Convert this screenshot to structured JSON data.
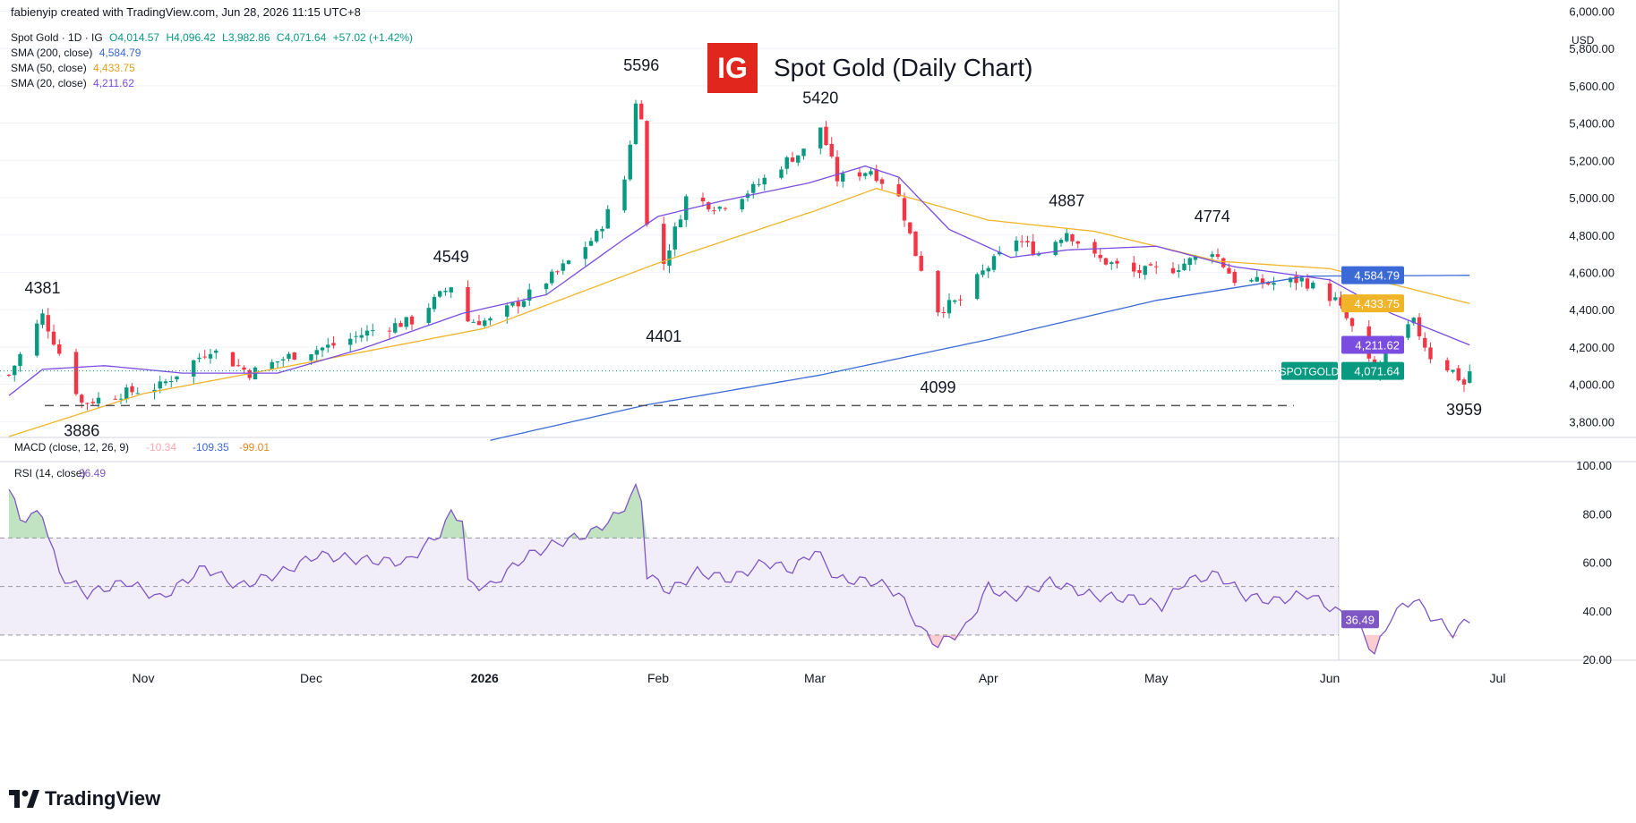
{
  "header": {
    "created_by": "fabienyip created with TradingView.com, Jun 28, 2026 11:15 UTC+8",
    "symbol_line": "Spot Gold · 1D · IG",
    "ohlc": {
      "o": "O4,014.57",
      "h": "H4,096.42",
      "l": "L3,982.86",
      "c": "C4,071.64",
      "chg": "+57.02 (+1.42%)"
    },
    "sma200": {
      "label": "SMA (200, close)",
      "value": "4,584.79",
      "color": "#3b6ad6"
    },
    "sma50": {
      "label": "SMA (50, close)",
      "value": "4,433.75",
      "color": "#f0b429"
    },
    "sma20": {
      "label": "SMA (20, close)",
      "value": "4,211.62",
      "color": "#7b4ce0"
    }
  },
  "title": "Spot Gold (Daily Chart)",
  "logo_text": "IG",
  "currency": "USD",
  "brand": "TradingView",
  "chart_data": [
    {
      "type": "candlestick",
      "title": "Spot Gold (Daily Chart)",
      "ylim": [
        3720,
        6060
      ],
      "y_ticks": [
        "3,800.00",
        "4,000.00",
        "4,200.00",
        "4,400.00",
        "4,600.00",
        "4,800.00",
        "5,000.00",
        "5,200.00",
        "5,400.00",
        "5,600.00",
        "5,800.00",
        "6,000.00"
      ],
      "x_ticks": [
        "Nov",
        "Dec",
        "2026",
        "Feb",
        "Mar",
        "Apr",
        "May",
        "Jun",
        "Jul"
      ],
      "support_level": 3886,
      "last_price": 4071.64,
      "price_tag": "SPOTGOLD",
      "last_price_label": "4,071.64",
      "annotations": [
        {
          "label": "4381",
          "date": "2025-10-14"
        },
        {
          "label": "3886",
          "date": "2025-10-21"
        },
        {
          "label": "4549",
          "date": "2025-12-26"
        },
        {
          "label": "5596",
          "date": "2026-01-29"
        },
        {
          "label": "4401",
          "date": "2026-02-02"
        },
        {
          "label": "5420",
          "date": "2026-03-02"
        },
        {
          "label": "4099",
          "date": "2026-03-23"
        },
        {
          "label": "4887",
          "date": "2026-04-15"
        },
        {
          "label": "4774",
          "date": "2026-05-11"
        },
        {
          "label": "3959",
          "date": "2026-06-25"
        }
      ],
      "series": [
        {
          "name": "Spot Gold",
          "anchors": [
            [
              "2025-10-08",
              4050
            ],
            [
              "2025-10-14",
              4370
            ],
            [
              "2025-10-21",
              3900
            ],
            [
              "2025-10-28",
              3950
            ],
            [
              "2025-11-04",
              3990
            ],
            [
              "2025-11-13",
              4190
            ],
            [
              "2025-11-20",
              4060
            ],
            [
              "2025-11-27",
              4150
            ],
            [
              "2025-12-05",
              4210
            ],
            [
              "2025-12-12",
              4290
            ],
            [
              "2025-12-19",
              4340
            ],
            [
              "2025-12-26",
              4530
            ],
            [
              "2025-12-29",
              4340
            ],
            [
              "2026-01-02",
              4340
            ],
            [
              "2026-01-08",
              4460
            ],
            [
              "2026-01-14",
              4600
            ],
            [
              "2026-01-21",
              4800
            ],
            [
              "2026-01-26",
              5100
            ],
            [
              "2026-01-28",
              5500
            ],
            [
              "2026-01-29",
              5450
            ],
            [
              "2026-01-30",
              4850
            ],
            [
              "2026-02-02",
              4650
            ],
            [
              "2026-02-06",
              5000
            ],
            [
              "2026-02-12",
              4950
            ],
            [
              "2026-02-18",
              5050
            ],
            [
              "2026-02-24",
              5200
            ],
            [
              "2026-02-27",
              5250
            ],
            [
              "2026-03-02",
              5380
            ],
            [
              "2026-03-05",
              5100
            ],
            [
              "2026-03-11",
              5150
            ],
            [
              "2026-03-16",
              5000
            ],
            [
              "2026-03-19",
              4700
            ],
            [
              "2026-03-23",
              4400
            ],
            [
              "2026-03-27",
              4450
            ],
            [
              "2026-03-31",
              4600
            ],
            [
              "2026-04-06",
              4780
            ],
            [
              "2026-04-10",
              4700
            ],
            [
              "2026-04-15",
              4820
            ],
            [
              "2026-04-20",
              4680
            ],
            [
              "2026-04-27",
              4600
            ],
            [
              "2026-05-04",
              4620
            ],
            [
              "2026-05-11",
              4720
            ],
            [
              "2026-05-15",
              4560
            ],
            [
              "2026-05-21",
              4540
            ],
            [
              "2026-05-27",
              4560
            ],
            [
              "2026-06-02",
              4450
            ],
            [
              "2026-06-05",
              4300
            ],
            [
              "2026-06-09",
              4050
            ],
            [
              "2026-06-12",
              4230
            ],
            [
              "2026-06-16",
              4330
            ],
            [
              "2026-06-19",
              4150
            ],
            [
              "2026-06-23",
              4070
            ],
            [
              "2026-06-25",
              4000
            ],
            [
              "2026-06-26",
              4071
            ]
          ]
        },
        {
          "name": "SMA (200, close)",
          "anchors": [
            [
              "2026-01-02",
              3700
            ],
            [
              "2026-01-30",
              3890
            ],
            [
              "2026-03-02",
              4050
            ],
            [
              "2026-04-01",
              4240
            ],
            [
              "2026-05-01",
              4450
            ],
            [
              "2026-05-28",
              4580
            ],
            [
              "2026-06-26",
              4584
            ]
          ]
        },
        {
          "name": "SMA (50, close)",
          "anchors": [
            [
              "2025-10-08",
              3720
            ],
            [
              "2025-11-01",
              3950
            ],
            [
              "2025-12-01",
              4120
            ],
            [
              "2026-01-01",
              4300
            ],
            [
              "2026-02-01",
              4650
            ],
            [
              "2026-03-01",
              4930
            ],
            [
              "2026-03-12",
              5050
            ],
            [
              "2026-04-01",
              4880
            ],
            [
              "2026-04-20",
              4820
            ],
            [
              "2026-05-12",
              4660
            ],
            [
              "2026-06-01",
              4620
            ],
            [
              "2026-06-26",
              4433
            ]
          ]
        },
        {
          "name": "SMA (20, close)",
          "anchors": [
            [
              "2025-10-08",
              3940
            ],
            [
              "2025-10-14",
              4080
            ],
            [
              "2025-10-25",
              4100
            ],
            [
              "2025-11-08",
              4060
            ],
            [
              "2025-11-25",
              4060
            ],
            [
              "2025-12-10",
              4190
            ],
            [
              "2025-12-28",
              4380
            ],
            [
              "2026-01-12",
              4480
            ],
            [
              "2026-01-26",
              4780
            ],
            [
              "2026-02-01",
              4900
            ],
            [
              "2026-02-12",
              4980
            ],
            [
              "2026-02-28",
              5080
            ],
            [
              "2026-03-10",
              5170
            ],
            [
              "2026-03-16",
              5110
            ],
            [
              "2026-03-25",
              4830
            ],
            [
              "2026-04-05",
              4680
            ],
            [
              "2026-04-15",
              4720
            ],
            [
              "2026-05-01",
              4740
            ],
            [
              "2026-05-15",
              4630
            ],
            [
              "2026-06-01",
              4560
            ],
            [
              "2026-06-12",
              4380
            ],
            [
              "2026-06-26",
              4211
            ]
          ]
        }
      ]
    },
    {
      "type": "line",
      "title": "MACD (close, 12, 26, 9)",
      "values": [
        "-10.34",
        "-109.35",
        "-99.01"
      ]
    },
    {
      "type": "line",
      "title": "RSI (14, close)",
      "current_value": "36.49",
      "ylim": [
        20,
        100
      ],
      "y_ticks": [
        "20.00",
        "40.00",
        "60.00",
        "80.00",
        "100.00"
      ],
      "band": [
        30,
        70
      ],
      "mid": 50,
      "series": [
        {
          "name": "RSI (14, close)",
          "anchors": [
            [
              "2025-10-08",
              90
            ],
            [
              "2025-10-10",
              78
            ],
            [
              "2025-10-14",
              80
            ],
            [
              "2025-10-17",
              55
            ],
            [
              "2025-10-22",
              47
            ],
            [
              "2025-10-29",
              52
            ],
            [
              "2025-11-04",
              45
            ],
            [
              "2025-11-12",
              58
            ],
            [
              "2025-11-18",
              50
            ],
            [
              "2025-11-26",
              56
            ],
            [
              "2025-12-02",
              63
            ],
            [
              "2025-12-10",
              61
            ],
            [
              "2025-12-18",
              60
            ],
            [
              "2025-12-24",
              72
            ],
            [
              "2025-12-26",
              80
            ],
            [
              "2025-12-28",
              78
            ],
            [
              "2025-12-29",
              51
            ],
            [
              "2026-01-02",
              50
            ],
            [
              "2026-01-08",
              62
            ],
            [
              "2026-01-14",
              68
            ],
            [
              "2026-01-20",
              72
            ],
            [
              "2026-01-25",
              80
            ],
            [
              "2026-01-28",
              90
            ],
            [
              "2026-01-29",
              86
            ],
            [
              "2026-01-30",
              55
            ],
            [
              "2026-02-03",
              48
            ],
            [
              "2026-02-08",
              56
            ],
            [
              "2026-02-14",
              53
            ],
            [
              "2026-02-20",
              60
            ],
            [
              "2026-02-25",
              57
            ],
            [
              "2026-03-01",
              65
            ],
            [
              "2026-03-05",
              53
            ],
            [
              "2026-03-12",
              52
            ],
            [
              "2026-03-16",
              47
            ],
            [
              "2026-03-20",
              32
            ],
            [
              "2026-03-23",
              26
            ],
            [
              "2026-03-28",
              33
            ],
            [
              "2026-04-01",
              50
            ],
            [
              "2026-04-05",
              45
            ],
            [
              "2026-04-12",
              52
            ],
            [
              "2026-04-20",
              46
            ],
            [
              "2026-04-27",
              45
            ],
            [
              "2026-05-02",
              42
            ],
            [
              "2026-05-06",
              52
            ],
            [
              "2026-05-12",
              55
            ],
            [
              "2026-05-17",
              46
            ],
            [
              "2026-05-22",
              44
            ],
            [
              "2026-05-28",
              47
            ],
            [
              "2026-06-02",
              40
            ],
            [
              "2026-06-06",
              35
            ],
            [
              "2026-06-09",
              22
            ],
            [
              "2026-06-12",
              38
            ],
            [
              "2026-06-16",
              45
            ],
            [
              "2026-06-19",
              38
            ],
            [
              "2026-06-23",
              31
            ],
            [
              "2026-06-26",
              36.49
            ]
          ]
        }
      ]
    }
  ]
}
